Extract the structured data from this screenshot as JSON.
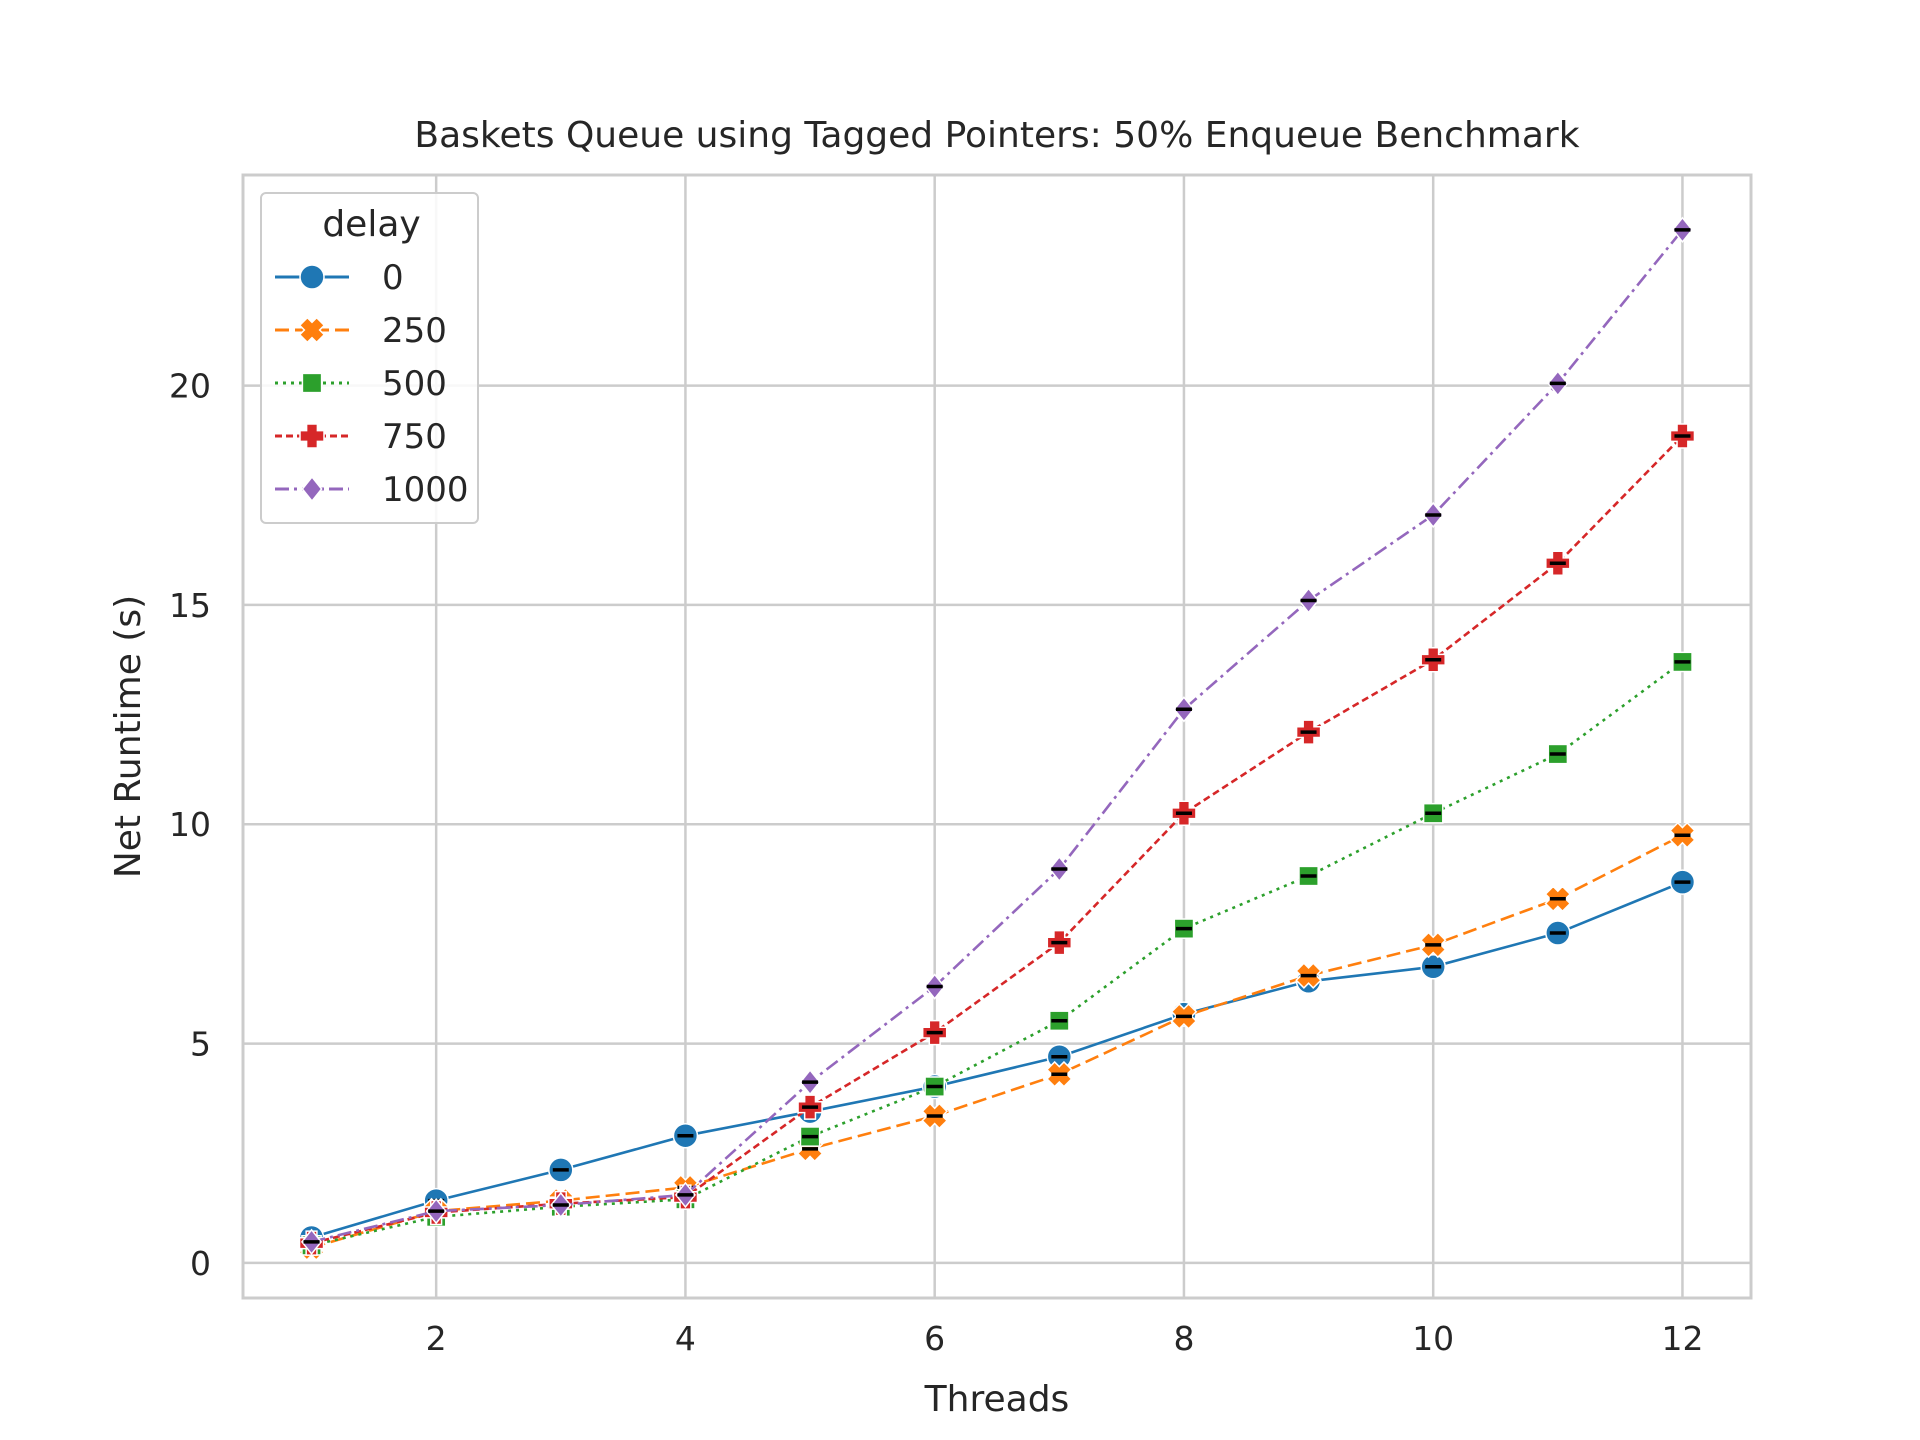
{
  "chart_data": {
    "type": "line",
    "title": "Baskets Queue using Tagged Pointers: 50% Enqueue Benchmark",
    "xlabel": "Threads",
    "ylabel": "Net Runtime (s)",
    "x": [
      1,
      2,
      3,
      4,
      5,
      6,
      7,
      8,
      9,
      10,
      11,
      12
    ],
    "xticks": [
      2,
      4,
      6,
      8,
      10,
      12
    ],
    "yticks": [
      0,
      5,
      10,
      15,
      20
    ],
    "xlim": [
      0.45,
      12.55
    ],
    "ylim": [
      -0.8,
      24.8
    ],
    "grid": true,
    "legend": {
      "title": "delay",
      "placement": "top-left"
    },
    "series": [
      {
        "name": "0",
        "color": "#1f77b4",
        "marker": "circle",
        "linestyle": "solid",
        "values": [
          0.58,
          1.42,
          2.12,
          2.9,
          3.45,
          4.02,
          4.7,
          5.67,
          6.42,
          6.75,
          7.52,
          8.68
        ]
      },
      {
        "name": "250",
        "color": "#ff7f0e",
        "marker": "x",
        "linestyle": "dashed",
        "values": [
          0.35,
          1.18,
          1.42,
          1.72,
          2.6,
          3.35,
          4.3,
          5.62,
          6.55,
          7.25,
          8.3,
          9.75
        ]
      },
      {
        "name": "500",
        "color": "#2ca02c",
        "marker": "square",
        "linestyle": "dotted",
        "values": [
          0.4,
          1.05,
          1.28,
          1.45,
          2.88,
          4.02,
          5.52,
          7.62,
          8.82,
          10.25,
          11.6,
          13.7
        ]
      },
      {
        "name": "750",
        "color": "#d62728",
        "marker": "plus",
        "linestyle": "densely-dashed",
        "values": [
          0.45,
          1.15,
          1.35,
          1.5,
          3.55,
          5.25,
          7.3,
          10.25,
          12.1,
          13.75,
          15.95,
          18.85
        ]
      },
      {
        "name": "1000",
        "color": "#9467bd",
        "marker": "diamond",
        "linestyle": "dashdot",
        "values": [
          0.48,
          1.18,
          1.32,
          1.55,
          4.12,
          6.3,
          8.98,
          12.62,
          15.1,
          17.05,
          20.05,
          23.55
        ]
      }
    ]
  }
}
